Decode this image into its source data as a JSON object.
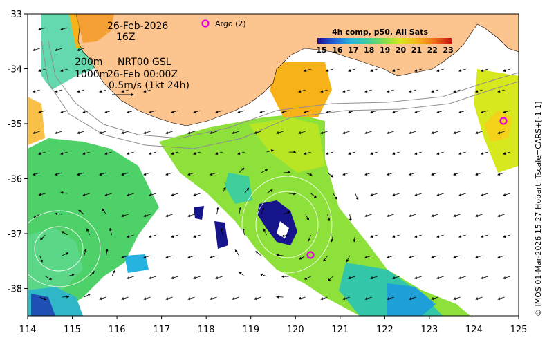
{
  "header": {
    "date": "26-Feb-2026",
    "hour": "16Z"
  },
  "legend": {
    "argo_label": "Argo (2)",
    "isobaths": "200m",
    "isobaths2": "1000m",
    "source": "NRT00 GSL",
    "source_time": "26-Feb 00:00Z",
    "scale_label": "0.5m/s (1kt 24h)"
  },
  "colorbar": {
    "title": "4h comp, p50, All Sats",
    "ticks": [
      "15",
      "16",
      "17",
      "18",
      "19",
      "20",
      "21",
      "22",
      "23"
    ],
    "colors": [
      "#1a0b8f",
      "#1f5fd6",
      "#27b3e0",
      "#3ecf9a",
      "#7fe04a",
      "#d8e81e",
      "#f7b21a",
      "#f06a17",
      "#c4120f"
    ]
  },
  "axes": {
    "x_ticks": [
      "114",
      "115",
      "116",
      "117",
      "118",
      "119",
      "120",
      "121",
      "122",
      "123",
      "124",
      "125"
    ],
    "y_ticks": [
      "-33",
      "-34",
      "-35",
      "-36",
      "-37",
      "-38"
    ]
  },
  "credit": "© IMOS 01-Mar-2026 15:27 Hobart; Tscale=CARS+[-1 1]",
  "map_data": {
    "lon_range": [
      114,
      125
    ],
    "lat_range": [
      -38.5,
      -33
    ],
    "argo_floats": [
      {
        "lon": 124.6,
        "lat": -34.95
      },
      {
        "lon": 120.35,
        "lat": -37.4
      }
    ],
    "palette": {
      "land": "#fcc48f",
      "coast_line": "#000000",
      "isobath": "#999999"
    }
  }
}
